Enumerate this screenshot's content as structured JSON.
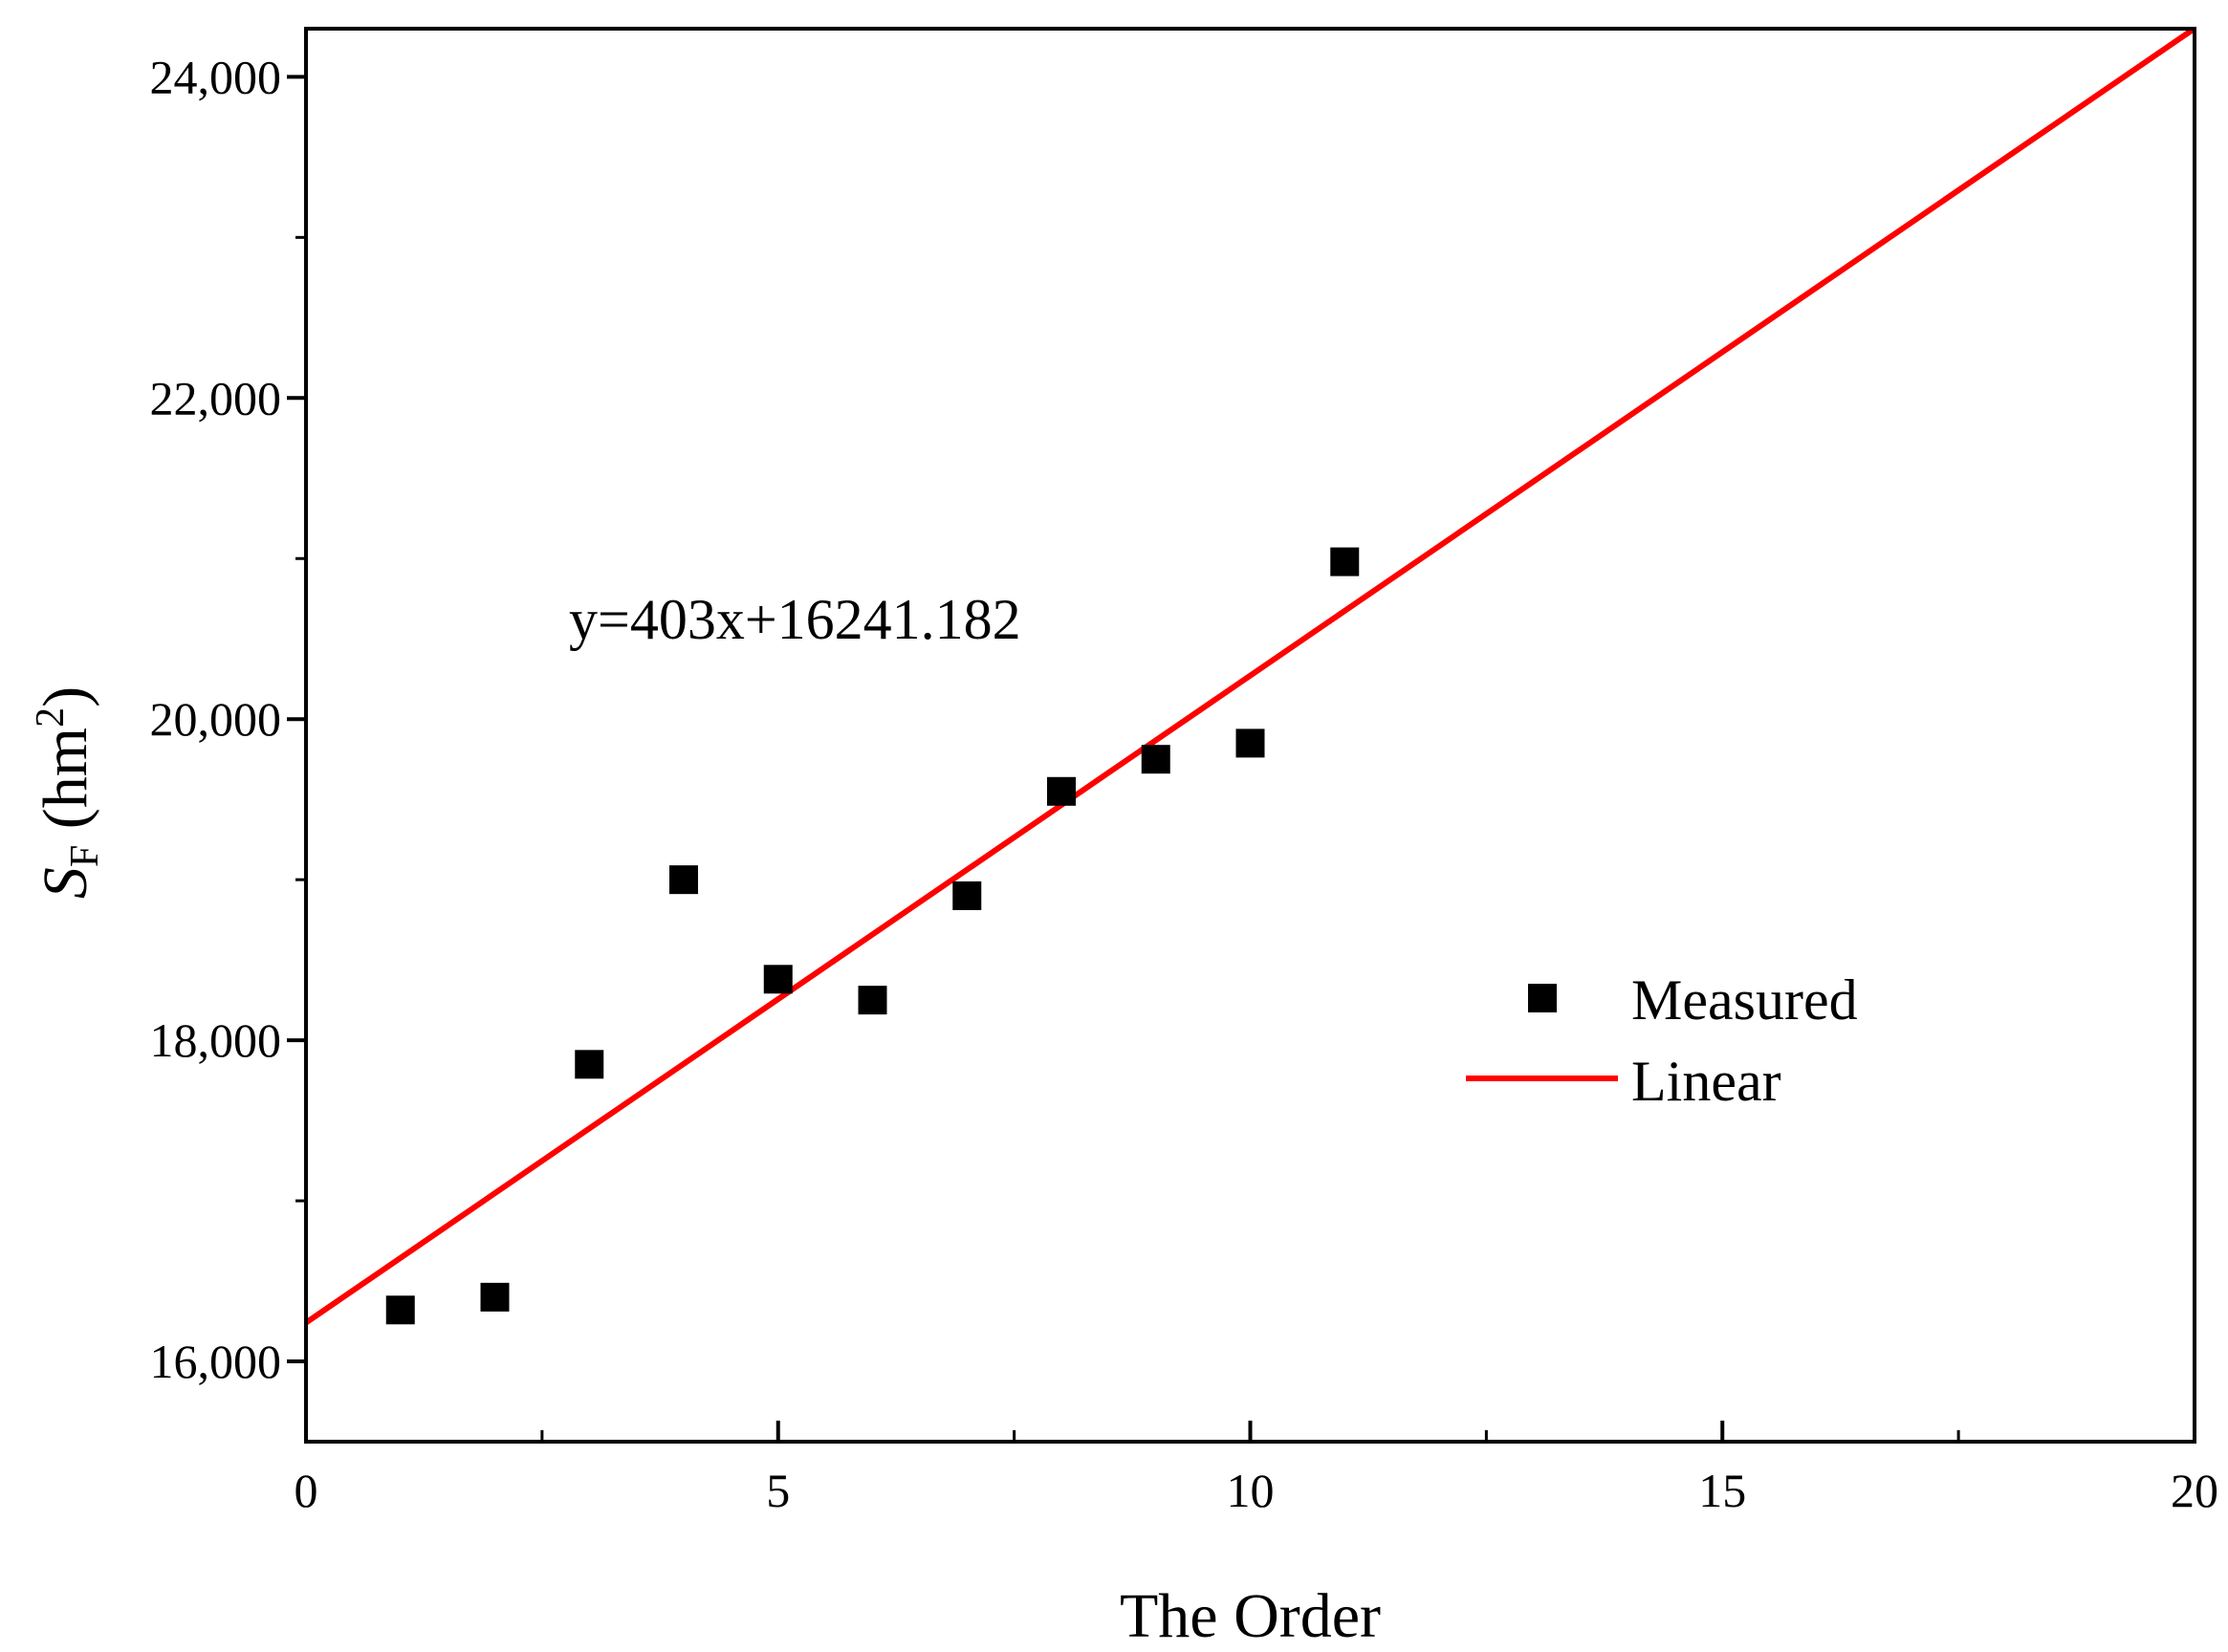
{
  "chart_data": {
    "type": "scatter",
    "xlabel": "The Order",
    "ylabel": {
      "main": "S",
      "subscript": "F",
      "unit_open": " (hm",
      "unit_sup": "2",
      "unit_close": ")"
    },
    "xlim": [
      0,
      20
    ],
    "ylim": [
      15500,
      24300
    ],
    "x_ticks": [
      0,
      5,
      10,
      15,
      20
    ],
    "x_tick_labels": [
      "0",
      "5",
      "10",
      "15",
      "20"
    ],
    "y_ticks": [
      16000,
      18000,
      20000,
      22000,
      24000
    ],
    "y_tick_labels": [
      "16,000",
      "18,000",
      "20,000",
      "22,000",
      "24,000"
    ],
    "grid": false,
    "legend_position": "right",
    "annotation": "y=403x+16241.182",
    "series": [
      {
        "name": "Measured",
        "kind": "scatter",
        "marker": "square",
        "color": "#000000",
        "x": [
          1,
          2,
          3,
          4,
          5,
          6,
          7,
          8,
          9,
          10,
          11
        ],
        "y": [
          16320,
          16400,
          17850,
          19000,
          18380,
          18250,
          18900,
          19550,
          19750,
          19850,
          20980
        ]
      },
      {
        "name": "Linear",
        "kind": "line",
        "color": "#ff0000",
        "slope": 403,
        "intercept": 16241.182
      }
    ]
  }
}
